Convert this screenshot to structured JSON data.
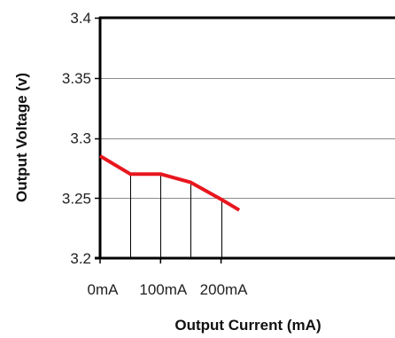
{
  "chart_data": {
    "type": "line",
    "xlabel": "Output Current (mA)",
    "ylabel": "Output Voltage (v)",
    "xlim": [
      0,
      230
    ],
    "ylim": [
      3.2,
      3.4
    ],
    "yticks": [
      "3.4",
      "3.35",
      "3.3",
      "3.25",
      "3.2"
    ],
    "ytick_values": [
      3.4,
      3.35,
      3.3,
      3.25,
      3.2
    ],
    "xticks": [
      "0mA",
      "100mA",
      "200mA"
    ],
    "xtick_values": [
      0,
      100,
      200
    ],
    "grid": {
      "horizontal": true,
      "vertical_drop_lines": true
    },
    "series": [
      {
        "color": "#e8161e",
        "x": [
          0,
          50,
          100,
          150,
          200,
          230
        ],
        "y": [
          3.285,
          3.27,
          3.27,
          3.263,
          3.249,
          3.24
        ]
      }
    ]
  }
}
